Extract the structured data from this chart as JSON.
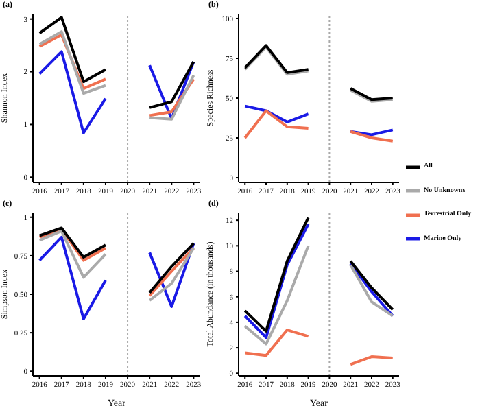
{
  "chart_data": [
    {
      "type": "line",
      "title": "(a)",
      "ylabel": "Shannon Index",
      "x": [
        2016,
        2017,
        2018,
        2019,
        2020,
        2021,
        2022,
        2023
      ],
      "xlim": [
        2015.7,
        2023.3
      ],
      "xticks": [
        2016,
        2017,
        2018,
        2019,
        2020,
        2021,
        2022,
        2023
      ],
      "ylim": [
        -0.1,
        3.1
      ],
      "yticks": [
        0,
        1,
        2,
        3
      ],
      "marker": "none",
      "line_style": "solid",
      "legend": false,
      "ref_lines": [
        {
          "axis": "x",
          "value": 2020,
          "color": "#aaaaaa",
          "line_style": "dotted"
        }
      ],
      "series": [
        {
          "color": "#000000",
          "values": [
            2.73,
            3.03,
            1.81,
            2.04,
            null,
            1.32,
            1.43,
            2.19
          ]
        },
        {
          "color": "#aaaaaa",
          "values": [
            2.52,
            2.76,
            1.59,
            1.74,
            null,
            1.13,
            1.1,
            1.93
          ]
        },
        {
          "color": "#f07050",
          "values": [
            2.48,
            2.7,
            1.68,
            1.86,
            null,
            1.17,
            1.24,
            1.86
          ]
        },
        {
          "color": "#1a1ae6",
          "values": [
            1.96,
            2.38,
            0.84,
            1.49,
            null,
            2.12,
            1.11,
            2.19
          ]
        }
      ]
    },
    {
      "type": "line",
      "title": "(b)",
      "ylabel": "Species Richness",
      "x": [
        2016,
        2017,
        2018,
        2019,
        2020,
        2021,
        2022,
        2023
      ],
      "xlim": [
        2015.7,
        2023.3
      ],
      "xticks": [
        2016,
        2017,
        2018,
        2019,
        2020,
        2021,
        2022,
        2023
      ],
      "ylim": [
        -3,
        103
      ],
      "yticks": [
        0,
        25,
        50,
        75,
        100
      ],
      "marker": "none",
      "line_style": "solid",
      "legend": "right",
      "ref_lines": [
        {
          "axis": "x",
          "value": 2020,
          "color": "#aaaaaa",
          "line_style": "dotted"
        }
      ],
      "series": [
        {
          "name": "All",
          "color": "#000000",
          "values": [
            69,
            83,
            66,
            68,
            null,
            56,
            49,
            50
          ]
        },
        {
          "name": "No Unknowns",
          "color": "#aaaaaa",
          "values": [
            68,
            82,
            65,
            67,
            null,
            55,
            48,
            49
          ]
        },
        {
          "name": "Terrestrial Only",
          "color": "#f07050",
          "values": [
            25,
            42,
            32,
            31,
            null,
            29,
            25,
            23
          ]
        },
        {
          "name": "Marine Only",
          "color": "#1a1ae6",
          "values": [
            45,
            42,
            35,
            40,
            null,
            29,
            27,
            30
          ]
        }
      ]
    },
    {
      "type": "line",
      "title": "(c)",
      "ylabel": "Simpson Index",
      "xlabel": "Year",
      "x": [
        2016,
        2017,
        2018,
        2019,
        2020,
        2021,
        2022,
        2023
      ],
      "xlim": [
        2015.7,
        2023.3
      ],
      "xticks": [
        2016,
        2017,
        2018,
        2019,
        2020,
        2021,
        2022,
        2023
      ],
      "ylim": [
        -0.03,
        1.03
      ],
      "yticks": [
        0,
        0.25,
        {
          "value": 0.5,
          "label": "0.50"
        },
        0.75,
        1
      ],
      "marker": "none",
      "line_style": "solid",
      "legend": false,
      "ref_lines": [
        {
          "axis": "x",
          "value": 2020,
          "color": "#aaaaaa",
          "line_style": "dotted"
        }
      ],
      "series": [
        {
          "color": "#000000",
          "values": [
            0.88,
            0.93,
            0.74,
            0.82,
            null,
            0.51,
            0.68,
            0.83
          ]
        },
        {
          "color": "#aaaaaa",
          "values": [
            0.85,
            0.91,
            0.61,
            0.76,
            null,
            0.46,
            0.57,
            0.8
          ]
        },
        {
          "color": "#f07050",
          "values": [
            0.87,
            0.92,
            0.72,
            0.8,
            null,
            0.49,
            0.65,
            0.8
          ]
        },
        {
          "color": "#1a1ae6",
          "values": [
            0.72,
            0.87,
            0.34,
            0.59,
            null,
            0.77,
            0.42,
            0.83
          ]
        }
      ]
    },
    {
      "type": "line",
      "title": "(d)",
      "ylabel": "Total Abundance (in thousands)",
      "xlabel": "Year",
      "x": [
        2016,
        2017,
        2018,
        2019,
        2020,
        2021,
        2022,
        2023
      ],
      "xlim": [
        2015.7,
        2023.3
      ],
      "xticks": [
        2016,
        2017,
        2018,
        2019,
        2020,
        2021,
        2022,
        2023
      ],
      "ylim": [
        -0.2,
        12.6
      ],
      "yticks": [
        0,
        2,
        4,
        6,
        8,
        10,
        12
      ],
      "marker": "none",
      "line_style": "solid",
      "legend": false,
      "ref_lines": [
        {
          "axis": "x",
          "value": 2020,
          "color": "#aaaaaa",
          "line_style": "dotted"
        }
      ],
      "series": [
        {
          "color": "#000000",
          "values": [
            4.9,
            3.3,
            8.8,
            12.2,
            null,
            8.8,
            6.7,
            5
          ]
        },
        {
          "color": "#aaaaaa",
          "values": [
            3.7,
            2.3,
            5.7,
            10,
            null,
            8.5,
            5.6,
            4.5
          ]
        },
        {
          "color": "#f07050",
          "values": [
            1.6,
            1.4,
            3.4,
            2.9,
            null,
            0.7,
            1.3,
            1.2
          ]
        },
        {
          "color": "#1a1ae6",
          "values": [
            4.5,
            2.8,
            8.5,
            11.7,
            null,
            8.6,
            6.4,
            4.5
          ]
        }
      ]
    }
  ]
}
